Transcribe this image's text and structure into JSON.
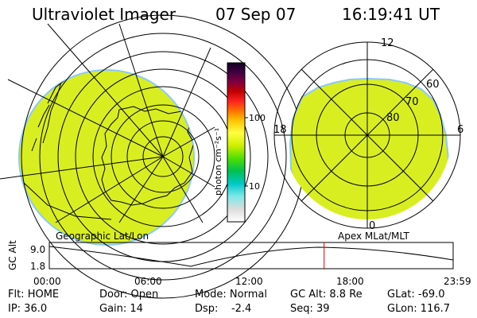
{
  "header": {
    "title": "Ultraviolet Imager",
    "date": "07 Sep 07",
    "time": "16:19:41 UT"
  },
  "colorbar": {
    "unit_label": "photon cm⁻²s⁻¹",
    "ticks": [
      "100",
      "10"
    ],
    "colors": [
      "#ffffff",
      "#dcdcdc",
      "#7fe8e8",
      "#00c8c8",
      "#00c050",
      "#50e000",
      "#d0f000",
      "#ffff40",
      "#ffc000",
      "#ff7000",
      "#ff2020",
      "#c00000",
      "#800040",
      "#400040",
      "#100020"
    ]
  },
  "left_map": {
    "label": "Geographic Lat/Lon",
    "fill_color": "#d8ee20"
  },
  "right_map": {
    "label": "Apex MLat/MLT",
    "fill_color": "#d8ee20",
    "mlt_labels": {
      "top": "12",
      "left": "18",
      "right": "6",
      "bottom": "0"
    },
    "lat_labels": [
      "60",
      "70",
      "80"
    ]
  },
  "altitude_plot": {
    "ylabel": "GC Alt",
    "yticks": [
      "9.0",
      "1.8"
    ],
    "xticks": [
      "00:00",
      "06:00",
      "12:00",
      "18:00",
      "23:59"
    ],
    "current_time_hours": 16.33
  },
  "info": {
    "row1": [
      "Flt: HOME",
      "Door: Open",
      "Mode: Normal",
      "GC Alt: 8.8 Re",
      "GLat: -69.0"
    ],
    "row2": [
      "IP: 36.0",
      "Gain: 14",
      "Dsp:    -2.4",
      "Seq: 39",
      "GLon: 116.7"
    ]
  }
}
